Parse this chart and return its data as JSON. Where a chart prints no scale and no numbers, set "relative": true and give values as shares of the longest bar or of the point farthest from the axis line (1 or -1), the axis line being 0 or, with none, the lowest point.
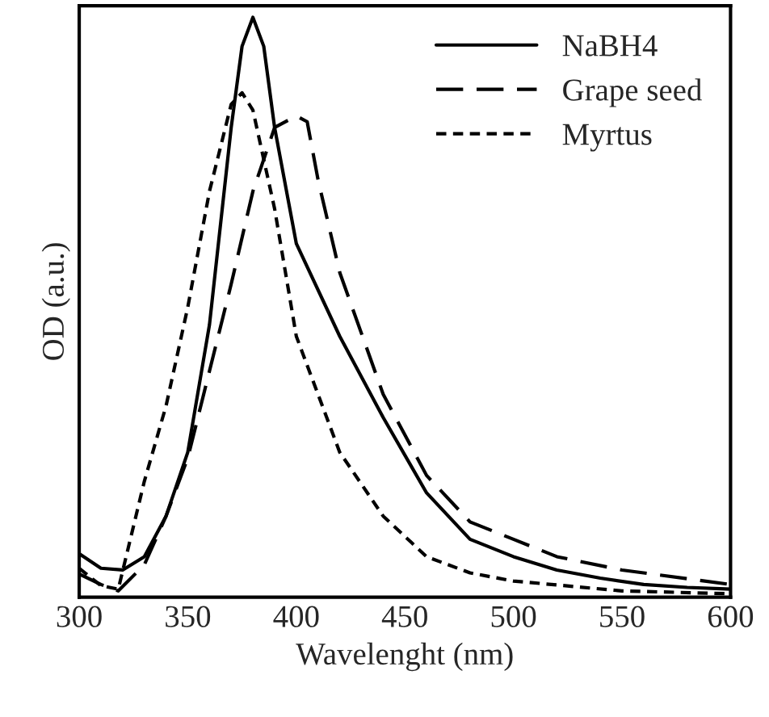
{
  "chart_data": {
    "type": "line",
    "relative": true,
    "xlabel": "Wavelenght (nm)",
    "ylabel": "OD (a.u.)",
    "xlim": [
      300,
      600
    ],
    "xticks": [
      300,
      350,
      400,
      450,
      500,
      550,
      600
    ],
    "tick_labels": "x",
    "legend": "top right",
    "grid": false,
    "marker": "none",
    "series": [
      {
        "name": "NaBH4",
        "color": "#000000",
        "line_style": "solid",
        "x": [
          300,
          310,
          320,
          330,
          340,
          350,
          360,
          370,
          375,
          380,
          385,
          390,
          400,
          420,
          440,
          460,
          480,
          500,
          520,
          540,
          560,
          580,
          600
        ],
        "values": [
          0.075,
          0.05,
          0.047,
          0.07,
          0.14,
          0.25,
          0.47,
          0.81,
          0.95,
          1.0,
          0.95,
          0.81,
          0.61,
          0.45,
          0.31,
          0.18,
          0.1,
          0.07,
          0.047,
          0.033,
          0.022,
          0.017,
          0.014
        ]
      },
      {
        "name": "Grape seed",
        "color": "#000000",
        "line_style": "dashed",
        "x": [
          300,
          310,
          318,
          330,
          340,
          350,
          360,
          370,
          380,
          390,
          400,
          405,
          410,
          420,
          440,
          460,
          480,
          500,
          520,
          550,
          600
        ],
        "values": [
          0.04,
          0.022,
          0.011,
          0.056,
          0.14,
          0.24,
          0.39,
          0.54,
          0.7,
          0.81,
          0.83,
          0.82,
          0.72,
          0.56,
          0.35,
          0.21,
          0.13,
          0.1,
          0.07,
          0.047,
          0.022
        ]
      },
      {
        "name": "Myrtus",
        "color": "#000000",
        "line_style": "dotted",
        "x": [
          300,
          310,
          318,
          330,
          340,
          350,
          360,
          370,
          375,
          380,
          390,
          400,
          420,
          440,
          460,
          480,
          500,
          550,
          600
        ],
        "values": [
          0.05,
          0.02,
          0.014,
          0.2,
          0.33,
          0.5,
          0.7,
          0.85,
          0.87,
          0.84,
          0.67,
          0.45,
          0.25,
          0.14,
          0.07,
          0.042,
          0.028,
          0.011,
          0.006
        ]
      }
    ]
  }
}
